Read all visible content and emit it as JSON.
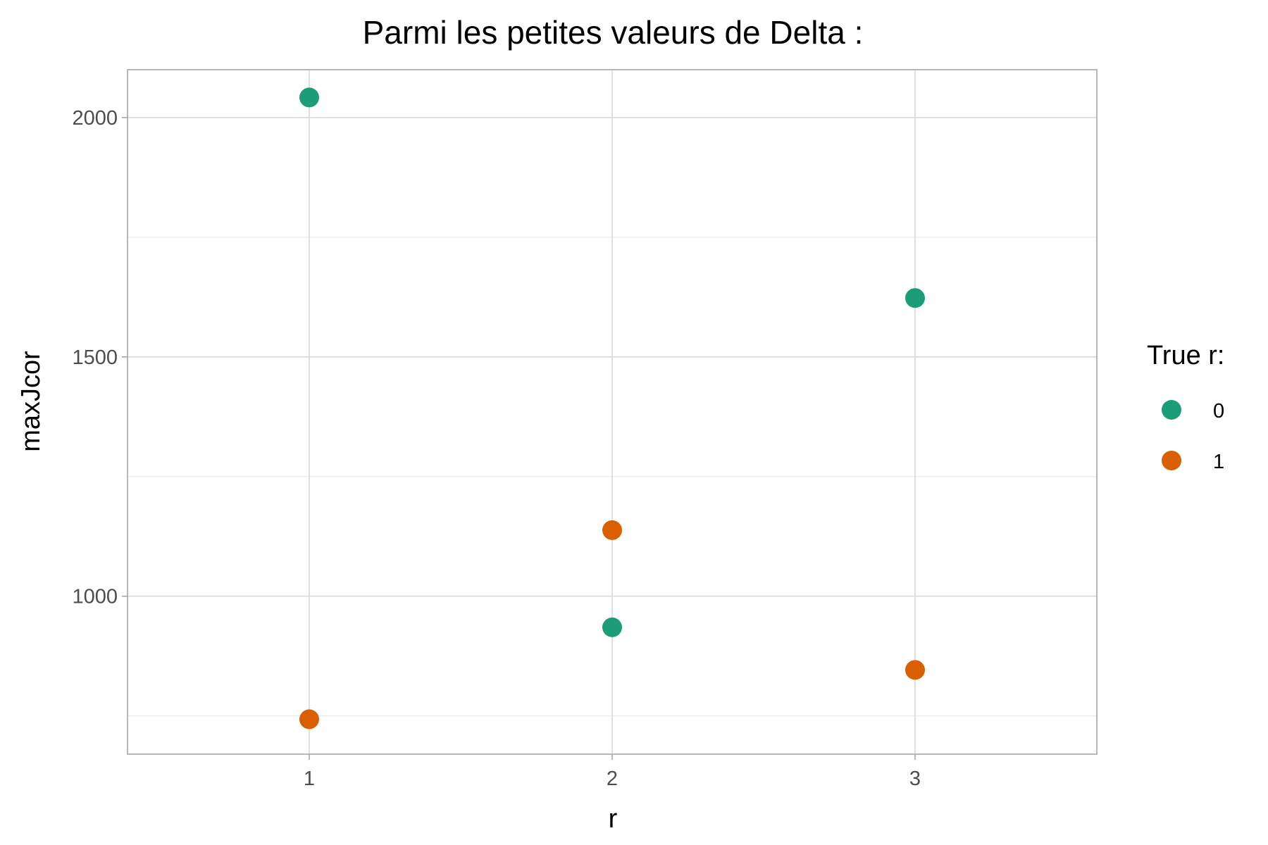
{
  "chart_data": {
    "type": "scatter",
    "title": "Parmi les petites valeurs de Delta :",
    "xlabel": "r",
    "ylabel": "maxJcor",
    "xlim": [
      0.4,
      3.6
    ],
    "ylim": [
      670,
      2100
    ],
    "x_ticks": [
      1,
      2,
      3
    ],
    "y_ticks": [
      1000,
      1500,
      2000
    ],
    "y_minor_ticks": [
      750,
      1250,
      1750
    ],
    "grid": true,
    "legend": {
      "title": "True r:",
      "placement": "right"
    },
    "series": [
      {
        "name": "0",
        "color": "#1b9e77",
        "points": [
          {
            "x": 1,
            "y": 2042
          },
          {
            "x": 2,
            "y": 935
          },
          {
            "x": 3,
            "y": 1623
          }
        ]
      },
      {
        "name": "1",
        "color": "#d95f02",
        "points": [
          {
            "x": 1,
            "y": 743
          },
          {
            "x": 2,
            "y": 1138
          },
          {
            "x": 3,
            "y": 846
          }
        ]
      }
    ]
  }
}
